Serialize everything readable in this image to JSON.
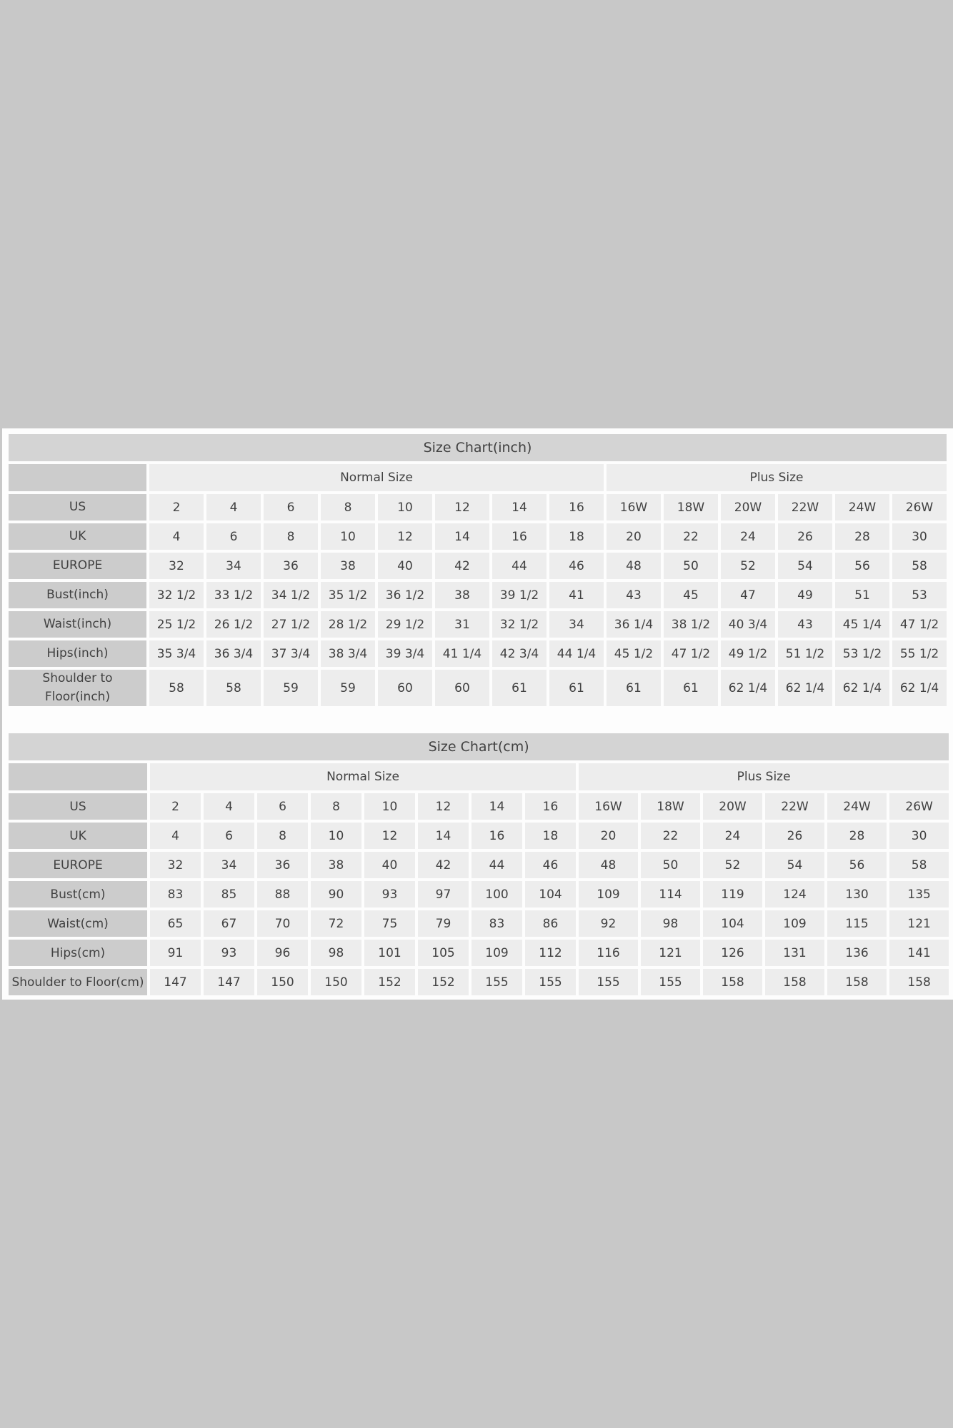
{
  "colors": {
    "page_background": "#c8c8c8",
    "panel_background": "#fdfdfd",
    "title_bar": "#d4d4d4",
    "header_cell": "#cccccc",
    "data_cell": "#ededed",
    "text": "#414141"
  },
  "tables": [
    {
      "title": "Size Chart(inch)",
      "groups": [
        {
          "label": "Normal Size"
        },
        {
          "label": "Plus Size"
        }
      ],
      "rows": [
        {
          "label": "US",
          "values": [
            "2",
            "4",
            "6",
            "8",
            "10",
            "12",
            "14",
            "16",
            "16W",
            "18W",
            "20W",
            "22W",
            "24W",
            "26W"
          ]
        },
        {
          "label": "UK",
          "values": [
            "4",
            "6",
            "8",
            "10",
            "12",
            "14",
            "16",
            "18",
            "20",
            "22",
            "24",
            "26",
            "28",
            "30"
          ]
        },
        {
          "label": "EUROPE",
          "values": [
            "32",
            "34",
            "36",
            "38",
            "40",
            "42",
            "44",
            "46",
            "48",
            "50",
            "52",
            "54",
            "56",
            "58"
          ]
        },
        {
          "label": "Bust(inch)",
          "values": [
            "32 1/2",
            "33 1/2",
            "34 1/2",
            "35 1/2",
            "36 1/2",
            "38",
            "39 1/2",
            "41",
            "43",
            "45",
            "47",
            "49",
            "51",
            "53"
          ]
        },
        {
          "label": "Waist(inch)",
          "values": [
            "25 1/2",
            "26 1/2",
            "27 1/2",
            "28 1/2",
            "29 1/2",
            "31",
            "32 1/2",
            "34",
            "36 1/4",
            "38 1/2",
            "40 3/4",
            "43",
            "45 1/4",
            "47 1/2"
          ]
        },
        {
          "label": "Hips(inch)",
          "values": [
            "35 3/4",
            "36 3/4",
            "37 3/4",
            "38 3/4",
            "39 3/4",
            "41 1/4",
            "42 3/4",
            "44 1/4",
            "45 1/2",
            "47 1/2",
            "49 1/2",
            "51 1/2",
            "53 1/2",
            "55 1/2"
          ]
        },
        {
          "label": "Shoulder to Floor(inch)",
          "values": [
            "58",
            "58",
            "59",
            "59",
            "60",
            "60",
            "61",
            "61",
            "61",
            "61",
            "62 1/4",
            "62 1/4",
            "62 1/4",
            "62 1/4"
          ]
        }
      ]
    },
    {
      "title": "Size Chart(cm)",
      "groups": [
        {
          "label": "Normal Size"
        },
        {
          "label": "Plus Size"
        }
      ],
      "rows": [
        {
          "label": "US",
          "values": [
            "2",
            "4",
            "6",
            "8",
            "10",
            "12",
            "14",
            "16",
            "16W",
            "18W",
            "20W",
            "22W",
            "24W",
            "26W"
          ]
        },
        {
          "label": "UK",
          "values": [
            "4",
            "6",
            "8",
            "10",
            "12",
            "14",
            "16",
            "18",
            "20",
            "22",
            "24",
            "26",
            "28",
            "30"
          ]
        },
        {
          "label": "EUROPE",
          "values": [
            "32",
            "34",
            "36",
            "38",
            "40",
            "42",
            "44",
            "46",
            "48",
            "50",
            "52",
            "54",
            "56",
            "58"
          ]
        },
        {
          "label": "Bust(cm)",
          "values": [
            "83",
            "85",
            "88",
            "90",
            "93",
            "97",
            "100",
            "104",
            "109",
            "114",
            "119",
            "124",
            "130",
            "135"
          ]
        },
        {
          "label": "Waist(cm)",
          "values": [
            "65",
            "67",
            "70",
            "72",
            "75",
            "79",
            "83",
            "86",
            "92",
            "98",
            "104",
            "109",
            "115",
            "121"
          ]
        },
        {
          "label": "Hips(cm)",
          "values": [
            "91",
            "93",
            "96",
            "98",
            "101",
            "105",
            "109",
            "112",
            "116",
            "121",
            "126",
            "131",
            "136",
            "141"
          ]
        },
        {
          "label": "Shoulder to Floor(cm)",
          "values": [
            "147",
            "147",
            "150",
            "150",
            "152",
            "152",
            "155",
            "155",
            "155",
            "155",
            "158",
            "158",
            "158",
            "158"
          ]
        }
      ]
    }
  ]
}
